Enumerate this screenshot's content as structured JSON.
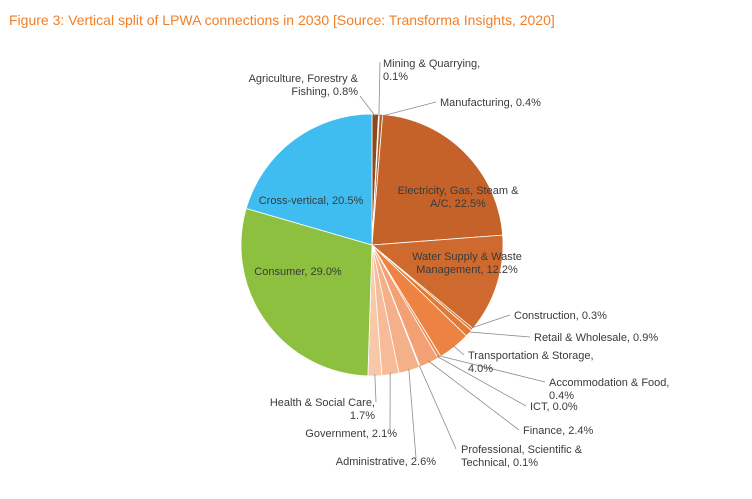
{
  "figure_title": "Figure 3: Vertical split of LPWA connections in 2030 [Source: Transforma Insights, 2020]",
  "colors": {
    "title": "#f07f2a",
    "leader": "#8c8c8c",
    "label_text": "#3a3a3a"
  },
  "chart_data": {
    "type": "pie",
    "title": "",
    "unit": "%",
    "slices": [
      {
        "name": "Agriculture, Forestry & Fishing",
        "value": 0.8,
        "label_lines": [
          "Agriculture, Forestry &",
          "Fishing, 0.8%"
        ],
        "color": "#8a4a1e"
      },
      {
        "name": "Mining & Quarrying",
        "value": 0.1,
        "label_lines": [
          "Mining & Quarrying,",
          "0.1%"
        ],
        "color": "#9c5220"
      },
      {
        "name": "Manufacturing",
        "value": 0.4,
        "label_lines": [
          "Manufacturing, 0.4%"
        ],
        "color": "#b35d22"
      },
      {
        "name": "Electricity, Gas, Steam & A/C",
        "value": 22.5,
        "label_lines": [
          "Electricity, Gas, Steam &",
          "A/C, 22.5%"
        ],
        "color": "#c5622a"
      },
      {
        "name": "Water Supply & Waste Management",
        "value": 12.2,
        "label_lines": [
          "Water Supply & Waste",
          "Management, 12.2%"
        ],
        "color": "#cf6a2f"
      },
      {
        "name": "Construction",
        "value": 0.3,
        "label_lines": [
          "Construction, 0.3%"
        ],
        "color": "#d9742f"
      },
      {
        "name": "Retail & Wholesale",
        "value": 0.9,
        "label_lines": [
          "Retail & Wholesale, 0.9%"
        ],
        "color": "#e27a36"
      },
      {
        "name": "Transportation & Storage",
        "value": 4.0,
        "label_lines": [
          "Transportation & Storage,",
          "4.0%"
        ],
        "color": "#ec8342"
      },
      {
        "name": "Accommodation & Food",
        "value": 0.4,
        "label_lines": [
          "Accommodation & Food,",
          "0.4%"
        ],
        "color": "#ef8e55"
      },
      {
        "name": "ICT",
        "value": 0.0,
        "label_lines": [
          "ICT, 0.0%"
        ],
        "color": "#f09763"
      },
      {
        "name": "Finance",
        "value": 2.4,
        "label_lines": [
          "Finance, 2.4%"
        ],
        "color": "#f2a074"
      },
      {
        "name": "Professional, Scientific & Technical",
        "value": 0.1,
        "label_lines": [
          "Professional, Scientific &",
          "Technical, 0.1%"
        ],
        "color": "#f3a87f"
      },
      {
        "name": "Administrative",
        "value": 2.6,
        "label_lines": [
          "Administrative, 2.6%"
        ],
        "color": "#f4b088"
      },
      {
        "name": "Government",
        "value": 2.1,
        "label_lines": [
          "Government, 2.1%"
        ],
        "color": "#f6bb98"
      },
      {
        "name": "Health & Social Care",
        "value": 1.7,
        "label_lines": [
          "Health & Social Care,",
          "1.7%"
        ],
        "color": "#f8c8a9"
      },
      {
        "name": "Consumer",
        "value": 29.0,
        "label_lines": [
          "Consumer, 29.0%"
        ],
        "color": "#8dc03f"
      },
      {
        "name": "Cross-vertical",
        "value": 20.5,
        "label_lines": [
          "Cross-vertical, 20.5%"
        ],
        "color": "#3fbdf0"
      }
    ]
  }
}
